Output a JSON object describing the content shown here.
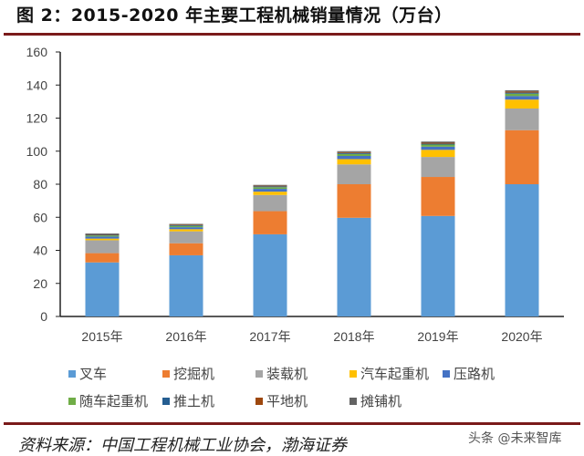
{
  "title": "图 2：2015-2020 年主要工程机械销量情况（万台）",
  "source": "资料来源：中国工程机械工业协会，渤海证券",
  "watermark": "头条 @未来智库",
  "chart_data": {
    "type": "bar",
    "stacked": true,
    "title": "",
    "xlabel": "",
    "ylabel": "",
    "ylim": [
      0,
      160
    ],
    "yticks": [
      0,
      20,
      40,
      60,
      80,
      100,
      120,
      140,
      160
    ],
    "grid": false,
    "legend_position": "bottom",
    "categories": [
      "2015年",
      "2016年",
      "2017年",
      "2018年",
      "2019年",
      "2020年"
    ],
    "series": [
      {
        "name": "叉车",
        "color": "#5b9bd5",
        "values": [
          32.7,
          37.0,
          49.7,
          59.7,
          60.8,
          80.0
        ]
      },
      {
        "name": "挖掘机",
        "color": "#ed7d31",
        "values": [
          5.6,
          7.3,
          14.0,
          20.3,
          23.6,
          32.7
        ]
      },
      {
        "name": "装载机",
        "color": "#a5a5a5",
        "values": [
          7.8,
          7.2,
          9.8,
          12.0,
          12.1,
          13.1
        ]
      },
      {
        "name": "汽车起重机",
        "color": "#ffc000",
        "values": [
          1.0,
          1.3,
          2.0,
          3.2,
          4.3,
          5.4
        ]
      },
      {
        "name": "压路机",
        "color": "#4472c4",
        "values": [
          1.2,
          1.2,
          1.7,
          1.9,
          1.9,
          2.1
        ]
      },
      {
        "name": "随车起重机",
        "color": "#70ad47",
        "values": [
          0.7,
          0.8,
          1.0,
          1.2,
          1.3,
          1.5
        ]
      },
      {
        "name": "推土机",
        "color": "#255e91",
        "values": [
          0.4,
          0.4,
          0.5,
          0.6,
          0.5,
          0.6
        ]
      },
      {
        "name": "平地机",
        "color": "#9e480e",
        "values": [
          0.3,
          0.3,
          0.4,
          0.5,
          0.6,
          0.7
        ]
      },
      {
        "name": "摊铺机",
        "color": "#636363",
        "values": [
          0.5,
          0.5,
          0.5,
          0.6,
          0.7,
          0.7
        ]
      }
    ]
  }
}
